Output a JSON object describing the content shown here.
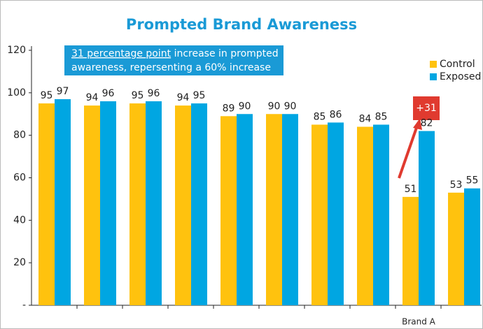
{
  "chart_data": {
    "type": "bar",
    "title": "Prompted Brand Awareness",
    "categories": [
      null,
      null,
      null,
      null,
      null,
      null,
      null,
      null,
      "Brand A",
      null
    ],
    "series": [
      {
        "name": "Control",
        "color": "#FFC20E",
        "values": [
          95,
          94,
          95,
          94,
          89,
          90,
          85,
          84,
          51,
          53
        ]
      },
      {
        "name": "Exposed",
        "color": "#00A6E2",
        "values": [
          97,
          96,
          96,
          95,
          90,
          90,
          86,
          85,
          82,
          55
        ]
      }
    ],
    "ylim": [
      0,
      120
    ],
    "yticks": [
      {
        "value": 0,
        "label": "-"
      },
      20,
      40,
      60,
      80,
      100,
      120
    ],
    "legend": "upper right",
    "annotations": {
      "callout": [
        "31 percentage point",
        "increase in prompted",
        "awareness, repersenting a 60% increase"
      ],
      "difference": "+31"
    }
  }
}
